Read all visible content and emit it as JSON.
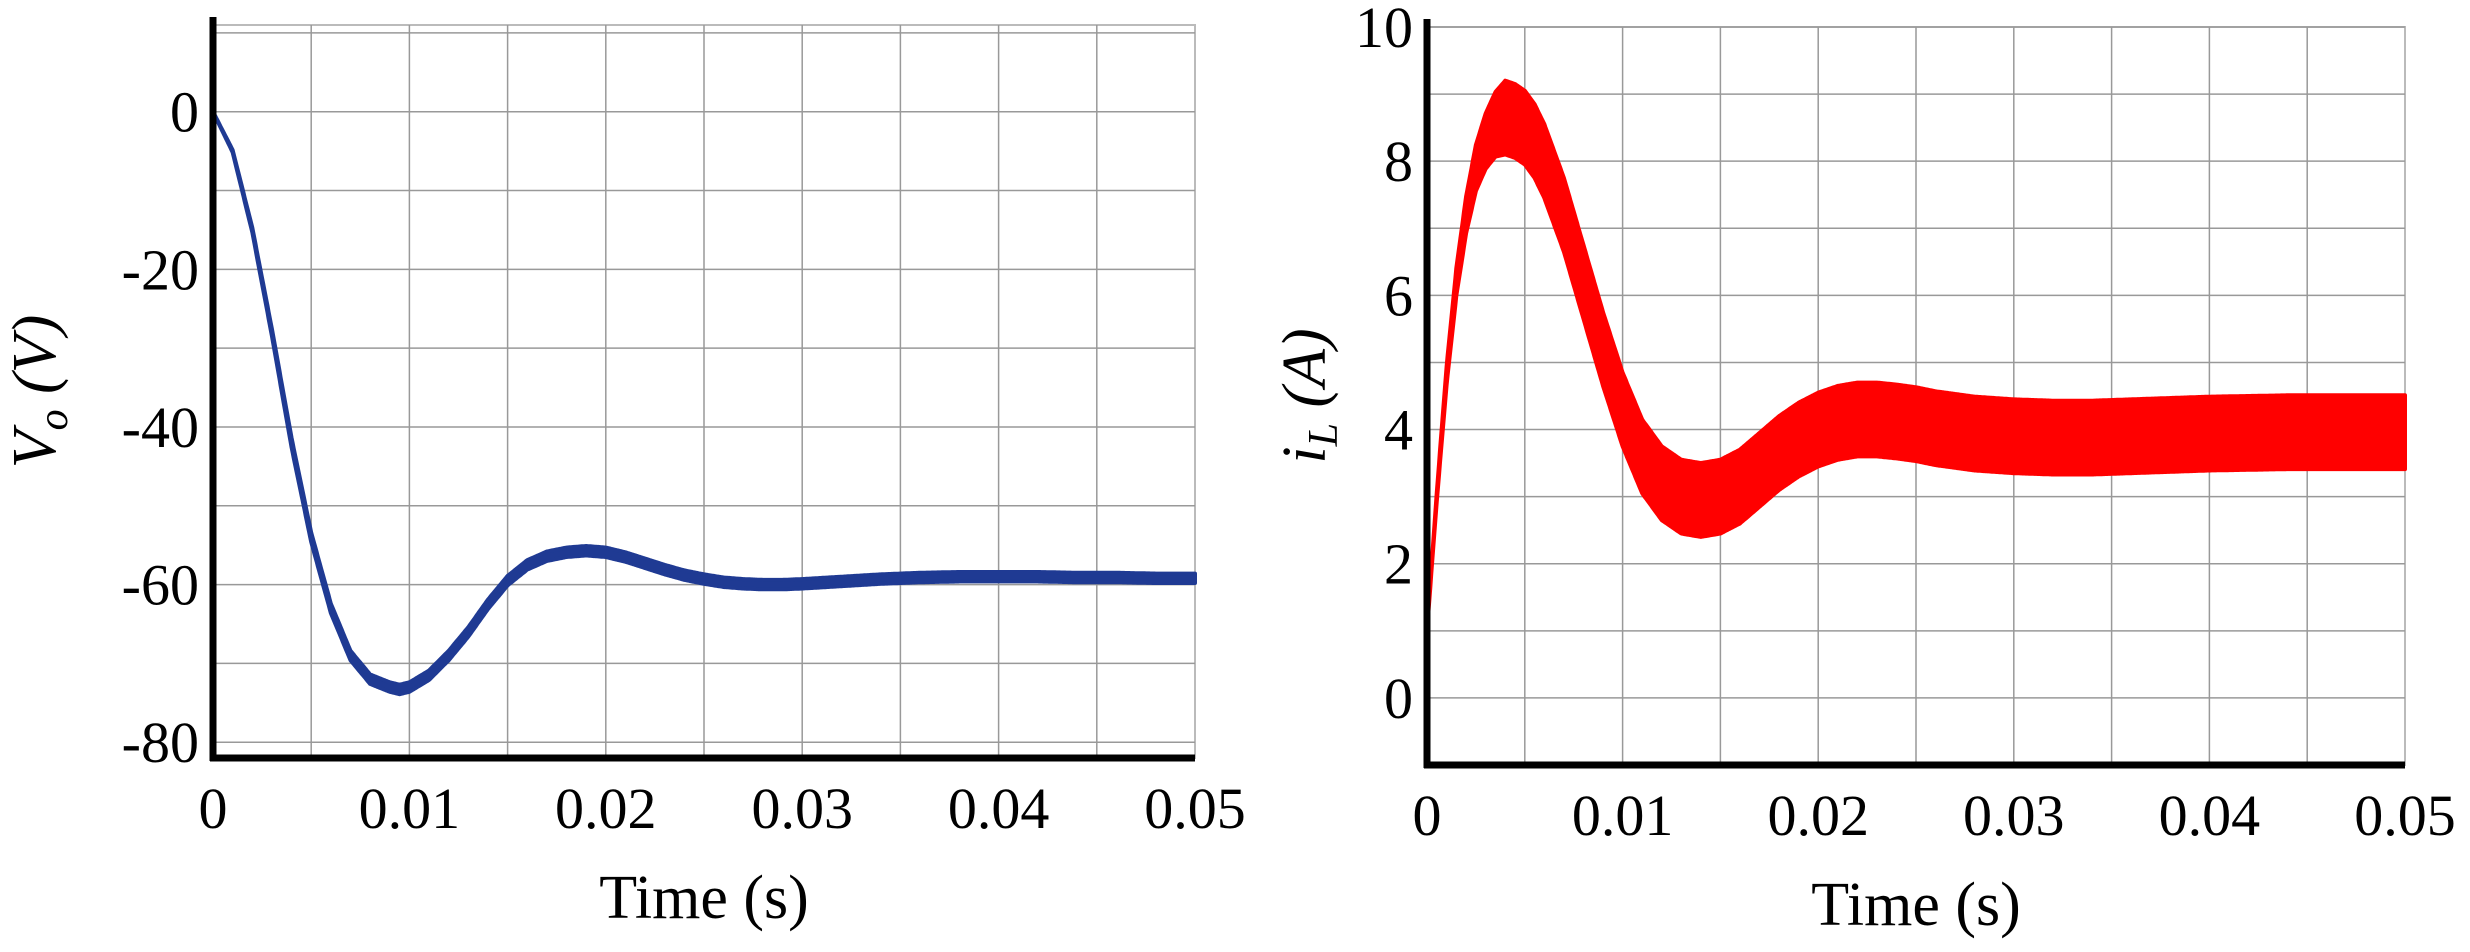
{
  "chart_data": [
    {
      "type": "line",
      "title": "",
      "xlabel": "Time (s)",
      "ylabel_main": "V",
      "ylabel_sub": "o",
      "ylabel_unit": " (V)",
      "xlim": [
        0,
        0.05
      ],
      "ylim": [
        -82,
        11
      ],
      "xticks": [
        0,
        0.01,
        0.02,
        0.03,
        0.04,
        0.05
      ],
      "xtick_labels": [
        "0",
        "0.01",
        "0.02",
        "0.03",
        "0.04",
        "0.05"
      ],
      "yticks": [
        0,
        -20,
        -40,
        -60,
        -80
      ],
      "ytick_labels": [
        "0",
        "-20",
        "-40",
        "-60",
        "-80"
      ],
      "grid": true,
      "color": "#1f3a93",
      "ripple": 0.6,
      "series": [
        {
          "x": [
            0,
            0.001,
            0.002,
            0.003,
            0.004,
            0.005,
            0.006,
            0.007,
            0.008,
            0.009,
            0.0095,
            0.01,
            0.011,
            0.012,
            0.013,
            0.014,
            0.015,
            0.016,
            0.017,
            0.018,
            0.019,
            0.02,
            0.021,
            0.022,
            0.023,
            0.024,
            0.025,
            0.026,
            0.027,
            0.028,
            0.029,
            0.03,
            0.032,
            0.034,
            0.036,
            0.038,
            0.04,
            0.042,
            0.044,
            0.046,
            0.048,
            0.05
          ],
          "y": [
            0,
            -5,
            -15,
            -28,
            -42,
            -54,
            -63,
            -69,
            -72,
            -73,
            -73.3,
            -73,
            -71.5,
            -69,
            -66,
            -62.5,
            -59.5,
            -57.5,
            -56.4,
            -55.9,
            -55.7,
            -55.9,
            -56.5,
            -57.3,
            -58.1,
            -58.8,
            -59.3,
            -59.7,
            -59.9,
            -60.0,
            -60.0,
            -59.9,
            -59.6,
            -59.3,
            -59.1,
            -59.0,
            -59.0,
            -59.0,
            -59.1,
            -59.1,
            -59.2,
            -59.2
          ]
        }
      ]
    },
    {
      "type": "line",
      "title": "",
      "xlabel": "Time (s)",
      "ylabel_main": "i",
      "ylabel_sub": "L",
      "ylabel_unit": " (A)",
      "xlim": [
        0,
        0.05
      ],
      "ylim": [
        -1,
        10
      ],
      "xticks": [
        0,
        0.01,
        0.02,
        0.03,
        0.04,
        0.05
      ],
      "xtick_labels": [
        "0",
        "0.01",
        "0.02",
        "0.03",
        "0.04",
        "0.05"
      ],
      "yticks": [
        0,
        2,
        4,
        6,
        8,
        10
      ],
      "ytick_labels": [
        "0",
        "2",
        "4",
        "6",
        "8",
        "10"
      ],
      "grid": true,
      "color": "#ff0000",
      "ripple": 0.55,
      "series": [
        {
          "x": [
            0,
            0.0005,
            0.001,
            0.0015,
            0.002,
            0.0025,
            0.003,
            0.0035,
            0.004,
            0.0045,
            0.005,
            0.0055,
            0.006,
            0.007,
            0.008,
            0.009,
            0.01,
            0.011,
            0.012,
            0.013,
            0.014,
            0.015,
            0.016,
            0.017,
            0.018,
            0.019,
            0.02,
            0.021,
            0.022,
            0.023,
            0.024,
            0.025,
            0.026,
            0.027,
            0.028,
            0.029,
            0.03,
            0.032,
            0.034,
            0.036,
            0.038,
            0.04,
            0.042,
            0.044,
            0.046,
            0.048,
            0.05
          ],
          "y": [
            1.0,
            3.0,
            4.8,
            6.2,
            7.2,
            7.9,
            8.3,
            8.55,
            8.65,
            8.6,
            8.5,
            8.3,
            8.0,
            7.2,
            6.2,
            5.2,
            4.3,
            3.6,
            3.2,
            3.0,
            2.95,
            3.0,
            3.15,
            3.4,
            3.65,
            3.85,
            4.0,
            4.1,
            4.15,
            4.15,
            4.12,
            4.08,
            4.02,
            3.98,
            3.94,
            3.92,
            3.9,
            3.88,
            3.88,
            3.9,
            3.92,
            3.94,
            3.95,
            3.96,
            3.96,
            3.96,
            3.96
          ]
        }
      ]
    }
  ]
}
